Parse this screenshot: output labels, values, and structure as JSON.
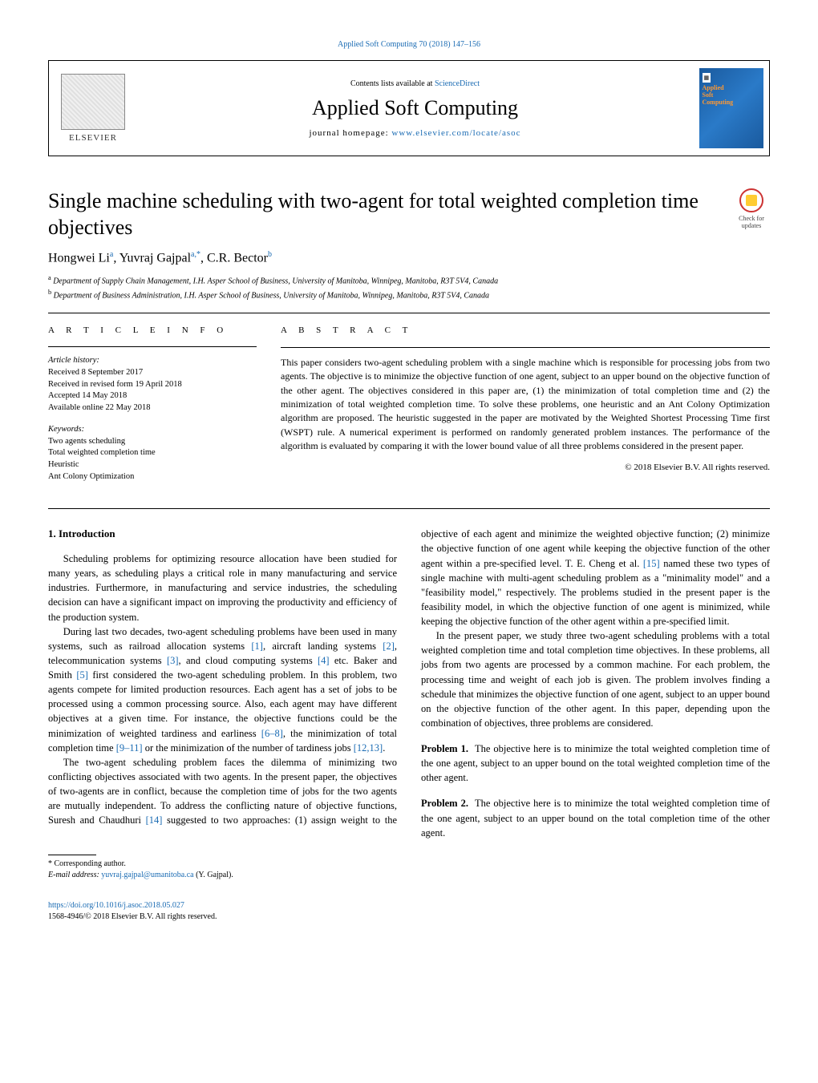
{
  "top_link": "Applied Soft Computing 70 (2018) 147–156",
  "header": {
    "contents_pre": "Contents lists available at ",
    "contents_link": "ScienceDirect",
    "journal": "Applied Soft Computing",
    "homepage_pre": "journal homepage: ",
    "homepage_link": "www.elsevier.com/locate/asoc",
    "elsevier": "ELSEVIER",
    "cover": {
      "line1": "Applied",
      "line2": "Soft",
      "line3": "Computing"
    }
  },
  "crossmark": "Check for updates",
  "title": "Single machine scheduling with two-agent for total weighted completion time objectives",
  "authors_html": "Hongwei Li<sup>a</sup>, Yuvraj Gajpal<sup>a,*</sup>, C.R. Bector<sup>b</sup>",
  "affiliations": {
    "a": "Department of Supply Chain Management, I.H. Asper School of Business, University of Manitoba, Winnipeg, Manitoba, R3T 5V4, Canada",
    "b": "Department of Business Administration, I.H. Asper School of Business, University of Manitoba, Winnipeg, Manitoba, R3T 5V4, Canada"
  },
  "article_info": {
    "label": "A R T I C L E   I N F O",
    "history_heading": "Article history:",
    "history": [
      "Received 8 September 2017",
      "Received in revised form 19 April 2018",
      "Accepted 14 May 2018",
      "Available online 22 May 2018"
    ],
    "keywords_heading": "Keywords:",
    "keywords": [
      "Two agents scheduling",
      "Total weighted completion time",
      "Heuristic",
      "Ant Colony Optimization"
    ]
  },
  "abstract": {
    "label": "A B S T R A C T",
    "text": "This paper considers two-agent scheduling problem with a single machine which is responsible for processing jobs from two agents. The objective is to minimize the objective function of one agent, subject to an upper bound on the objective function of the other agent. The objectives considered in this paper are, (1) the minimization of total completion time and (2) the minimization of total weighted completion time. To solve these problems, one heuristic and an Ant Colony Optimization algorithm are proposed. The heuristic suggested in the paper are motivated by the Weighted Shortest Processing Time first (WSPT) rule. A numerical experiment is performed on randomly generated problem instances. The performance of the algorithm is evaluated by comparing it with the lower bound value of all three problems considered in the present paper.",
    "copyright": "© 2018 Elsevier B.V. All rights reserved."
  },
  "intro_heading": "1.  Introduction",
  "intro": {
    "p1": "Scheduling problems for optimizing resource allocation have been studied for many years, as scheduling plays a critical role in many manufacturing and service industries. Furthermore, in manufacturing and service industries, the scheduling decision can have a significant impact on improving the productivity and efficiency of the production system.",
    "p2a": "During last two decades, two-agent scheduling problems have been used in many systems, such as railroad allocation systems ",
    "p2b": ", aircraft landing systems ",
    "p2c": ", telecommunication systems ",
    "p2d": ", and cloud computing systems ",
    "p2e": " etc. Baker and Smith ",
    "p2f": " first considered the two-agent scheduling problem. In this problem, two agents compete for limited production resources. Each agent has a set of jobs to be processed using a common processing source. Also, each agent may have different objectives at a given time. For instance, the objective functions could be the minimization of weighted tardiness and earliness ",
    "p2g": ", the minimization of total completion time ",
    "p2h": " or the minimization of the number of tardiness jobs ",
    "p2i": ".",
    "p3": "The two-agent scheduling problem faces the dilemma of minimizing two conflicting objectives associated with two agents. In the present paper, the objectives of two-agents are in conflict, because the completion time of jobs for the two agents are mutually inde",
    "p3_cont_a": "pendent. To address the conflicting nature of objective functions, Suresh and Chaudhuri ",
    "p3_cont_b": " suggested to two approaches: (1) assign weight to the objective of each agent and minimize the weighted objective function; (2) minimize the objective function of one agent while keeping the objective function of the other agent within a pre-specified level. T. E. Cheng et al. ",
    "p3_cont_c": " named these two types of single machine with multi-agent scheduling problem as a \"minimality model\" and a \"feasibility model,\" respectively. The problems studied in the present paper is the feasibility model, in which the objective function of one agent is minimized, while keeping the objective function of the other agent within a pre-specified limit.",
    "p4": "In the present paper, we study three two-agent scheduling problems with a total weighted completion time and total completion time objectives. In these problems, all jobs from two agents are processed by a common machine. For each problem, the processing time and weight of each job is given. The problem involves finding a schedule that minimizes the objective function of one agent, subject to an upper bound on the objective function of the other agent. In this paper, depending upon the combination of objectives, three problems are considered."
  },
  "refs": {
    "r1": "[1]",
    "r2": "[2]",
    "r3": "[3]",
    "r4": "[4]",
    "r5": "[5]",
    "r6_8": "[6–8]",
    "r9_11": "[9–11]",
    "r12_13": "[12,13]",
    "r14": "[14]",
    "r15": "[15]"
  },
  "problems": {
    "p1_label": "Problem 1.",
    "p1_text": "The objective here is to minimize the total weighted completion time of the one agent, subject to an upper bound on the total weighted completion time of the other agent.",
    "p2_label": "Problem 2.",
    "p2_text": "The objective here is to minimize the total weighted completion time of the one agent, subject to an upper bound on the total completion time of the other agent."
  },
  "footnote": {
    "corr": "* Corresponding author.",
    "email_label": "E-mail address: ",
    "email": "yuvraj.gajpal@umanitoba.ca",
    "email_suffix": " (Y. Gajpal)."
  },
  "footer": {
    "doi": "https://doi.org/10.1016/j.asoc.2018.05.027",
    "issn": "1568-4946/© 2018 Elsevier B.V. All rights reserved."
  },
  "colors": {
    "link": "#1a6bb3",
    "text": "#000000",
    "cover_bg": "#1a5a9e",
    "cover_accent": "#ff9933"
  }
}
